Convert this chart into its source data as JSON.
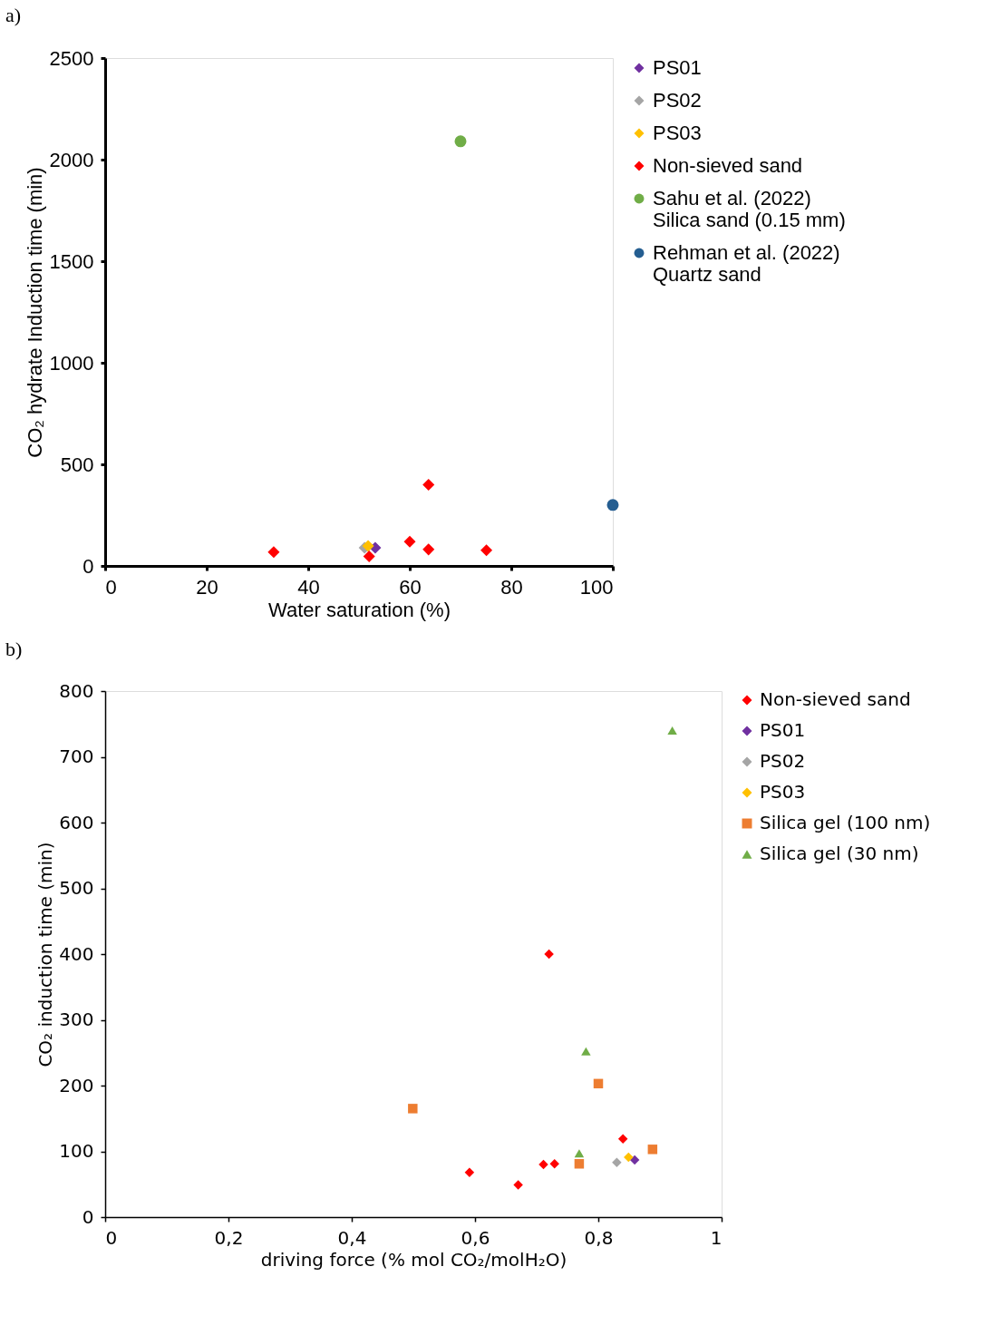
{
  "chart_data": [
    {
      "type": "scatter",
      "title": "a)",
      "xlabel": "Water saturation (%)",
      "ylabel": "CO₂ hydrate Induction time (min)",
      "xlim": [
        0,
        100
      ],
      "xticks": [
        0,
        20,
        40,
        60,
        80,
        100
      ],
      "ylim": [
        0,
        2500
      ],
      "yticks": [
        0,
        500,
        1000,
        1500,
        2000,
        2500
      ],
      "grid": false,
      "legend": "right",
      "series": [
        {
          "name": "PS01",
          "color": "#7030a0",
          "marker": "diamond",
          "x": [
            53.2
          ],
          "values": [
            89
          ]
        },
        {
          "name": "PS02",
          "color": "#a5a5a5",
          "marker": "diamond",
          "x": [
            51.1
          ],
          "values": [
            89
          ]
        },
        {
          "name": "PS03",
          "color": "#ffc000",
          "marker": "diamond",
          "x": [
            51.8
          ],
          "values": [
            98
          ]
        },
        {
          "name": "Non-sieved sand",
          "color": "#ff0000",
          "marker": "diamond",
          "x": [
            33.2,
            52,
            60,
            63.7,
            63.7,
            75.1
          ],
          "values": [
            68,
            47,
            119,
            400,
            81,
            77
          ]
        },
        {
          "name": "Sahu et al. (2022)\nSilica sand (0.15 mm)",
          "color": "#70ad47",
          "marker": "circle",
          "x": [
            70
          ],
          "values": [
            2090
          ]
        },
        {
          "name": "Rehman et al. (2022)\nQuartz sand",
          "color": "#255e91",
          "marker": "circle",
          "x": [
            100
          ],
          "values": [
            300
          ]
        }
      ]
    },
    {
      "type": "scatter",
      "title": "b)",
      "xlabel": "driving force (% mol CO₂/molH₂O)",
      "ylabel": "CO₂ induction time (min)",
      "xlim": [
        0,
        1
      ],
      "xticks": [
        0,
        {
          "value": 0.2,
          "label": "0,2"
        },
        {
          "value": 0.4,
          "label": "0,4"
        },
        {
          "value": 0.6,
          "label": "0,6"
        },
        {
          "value": 0.8,
          "label": "0,8"
        },
        1
      ],
      "ylim": [
        0,
        800
      ],
      "yticks": [
        0,
        100,
        200,
        300,
        400,
        500,
        600,
        700,
        800
      ],
      "grid": false,
      "legend": "right",
      "series": [
        {
          "name": "Non-sieved sand",
          "color": "#ff0000",
          "marker": "diamond",
          "x": [
            0.591,
            0.67,
            0.711,
            0.729,
            0.72,
            0.84
          ],
          "values": [
            68,
            49,
            80,
            81,
            400,
            119
          ]
        },
        {
          "name": "PS01",
          "color": "#7030a0",
          "marker": "diamond",
          "x": [
            0.859
          ],
          "values": [
            87
          ]
        },
        {
          "name": "PS02",
          "color": "#a5a5a5",
          "marker": "diamond",
          "x": [
            0.83
          ],
          "values": [
            83
          ]
        },
        {
          "name": "PS03",
          "color": "#ffc000",
          "marker": "diamond",
          "x": [
            0.849
          ],
          "values": [
            91
          ]
        },
        {
          "name": "Silica gel (100 nm)",
          "color": "#ed7d31",
          "marker": "square",
          "x": [
            0.499,
            0.769,
            0.8,
            0.888
          ],
          "values": [
            165,
            81,
            203,
            103
          ]
        },
        {
          "name": "Silica gel (30 nm)",
          "color": "#70ad47",
          "marker": "triangle",
          "x": [
            0.92,
            0.78,
            0.769
          ],
          "values": [
            740,
            252,
            97
          ]
        }
      ]
    }
  ]
}
